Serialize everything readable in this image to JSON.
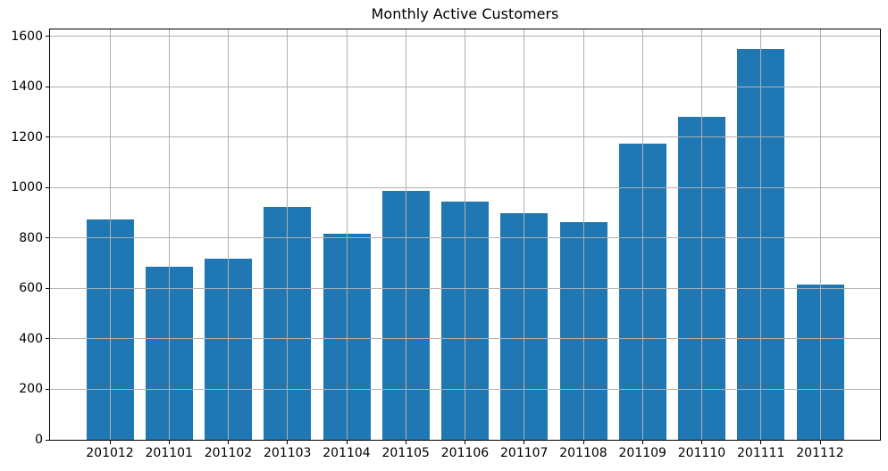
{
  "figure": {
    "title": "Monthly Active Customers"
  },
  "chart_data": {
    "type": "bar",
    "title": "Monthly Active Customers",
    "categories": [
      "201012",
      "201101",
      "201102",
      "201103",
      "201104",
      "201105",
      "201106",
      "201107",
      "201108",
      "201109",
      "201110",
      "201111",
      "201112"
    ],
    "values": [
      875,
      685,
      717,
      925,
      818,
      986,
      943,
      898,
      864,
      1176,
      1282,
      1550,
      616
    ],
    "xlabel": "",
    "ylabel": "",
    "ylim": [
      0,
      1627.5
    ],
    "yticks": [
      0,
      200,
      400,
      600,
      800,
      1000,
      1200,
      1400,
      1600
    ],
    "bar_color": "#1f77b4",
    "grid": true,
    "grid_color": "#b0b0b0",
    "spine_color": "#000000",
    "background_color": "#ffffff",
    "legend_position": "none"
  }
}
